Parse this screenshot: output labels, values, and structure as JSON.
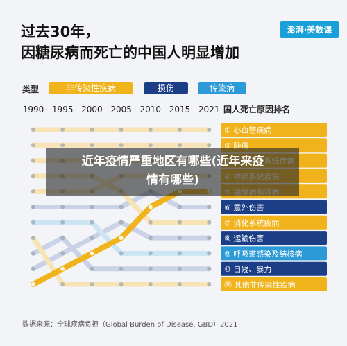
{
  "title": {
    "line1": "过去30年，",
    "line2": "因糖尿病而死亡的中国人明显增加"
  },
  "logo": "澎湃·美数课",
  "legend": {
    "label": "类型",
    "items": [
      {
        "label": "非传染性疾病",
        "color": "#f0b31c"
      },
      {
        "label": "损伤",
        "color": "#1b3e86"
      },
      {
        "label": "传染病",
        "color": "#2b9ad6"
      }
    ]
  },
  "chart_data": {
    "type": "line",
    "title": "国人死亡原因排名",
    "x": [
      "1990",
      "1995",
      "2000",
      "2005",
      "2010",
      "2015",
      "2021"
    ],
    "y_axis": "rank (1 = top)",
    "causes": [
      {
        "rank": 1,
        "label": "① 心血管疾病",
        "type": "非传染性疾病",
        "ranks": [
          1,
          1,
          1,
          1,
          1,
          1,
          1
        ]
      },
      {
        "rank": 2,
        "label": "② 肿瘤",
        "type": "非传染性疾病",
        "ranks": [
          2,
          2,
          2,
          2,
          2,
          2,
          2
        ]
      },
      {
        "rank": 3,
        "label": "③ 慢性呼吸系统疾病",
        "type": "非传染性疾病",
        "ranks": [
          3,
          3,
          3,
          3,
          3,
          3,
          3
        ]
      },
      {
        "rank": 4,
        "label": "④ 神经系统疾病",
        "type": "非传染性疾病",
        "ranks": [
          5,
          5,
          5,
          4,
          4,
          4,
          4
        ]
      },
      {
        "rank": 5,
        "label": "⑤ 糖尿病和肾病",
        "type": "非传染性疾病",
        "ranks": [
          11,
          10,
          9,
          8,
          6,
          5,
          5
        ]
      },
      {
        "rank": 6,
        "label": "⑥ 意外伤害",
        "type": "损伤",
        "ranks": [
          6,
          6,
          6,
          6,
          5,
          6,
          6
        ]
      },
      {
        "rank": 7,
        "label": "⑦ 消化系统疾病",
        "type": "非传染性疾病",
        "ranks": [
          4,
          4,
          4,
          5,
          7,
          7,
          7
        ]
      },
      {
        "rank": 8,
        "label": "⑧ 运输伤害",
        "type": "损伤",
        "ranks": [
          10,
          9,
          8,
          7,
          8,
          8,
          8
        ]
      },
      {
        "rank": 9,
        "label": "⑨ 呼吸道感染及结核病",
        "type": "传染病",
        "ranks": [
          7,
          7,
          7,
          9,
          9,
          9,
          9
        ]
      },
      {
        "rank": 10,
        "label": "⑩ 自残、暴力",
        "type": "损伤",
        "ranks": [
          9,
          8,
          10,
          10,
          10,
          10,
          10
        ]
      },
      {
        "rank": 11,
        "label": "⑪ 其他非传染性疾病",
        "type": "非传染性疾病",
        "ranks": [
          8,
          11,
          11,
          11,
          11,
          11,
          11
        ]
      }
    ]
  },
  "source": "数据来源：全球疾病负担（Global Burden of Disease, GBD）2021",
  "overlay": {
    "line1": "近年疫情严重地区有哪些(近年来疫",
    "line2": "情有哪些)"
  }
}
